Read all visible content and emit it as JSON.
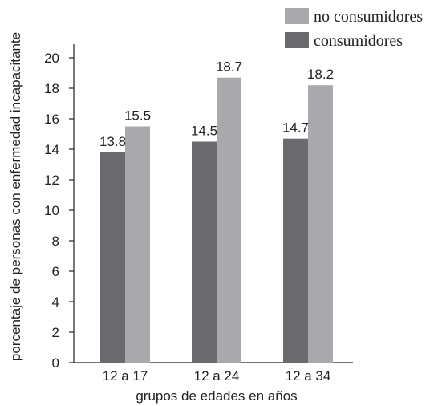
{
  "chart_data": {
    "type": "bar",
    "categories": [
      "12 a 17",
      "12 a 24",
      "12 a 34"
    ],
    "series": [
      {
        "name": "consumidores",
        "values": [
          13.8,
          14.5,
          14.7
        ],
        "color": "#6b6b6f"
      },
      {
        "name": "no consumidores",
        "values": [
          15.5,
          18.7,
          18.2
        ],
        "color": "#a9a9ad"
      }
    ],
    "value_labels": [
      [
        "13.8",
        "14.5",
        "14.7"
      ],
      [
        "15.5",
        "18.7",
        "18.2"
      ]
    ],
    "xlabel": "grupos de edades en años",
    "ylabel": "porcentaje de personas con enfermedad incapacitante",
    "ylim": [
      0,
      20
    ],
    "yticks": [
      0,
      2,
      4,
      6,
      8,
      10,
      12,
      14,
      16,
      18,
      20
    ],
    "grid": false,
    "legend": {
      "position": "top-right",
      "order": [
        "no consumidores",
        "consumidores"
      ]
    }
  }
}
